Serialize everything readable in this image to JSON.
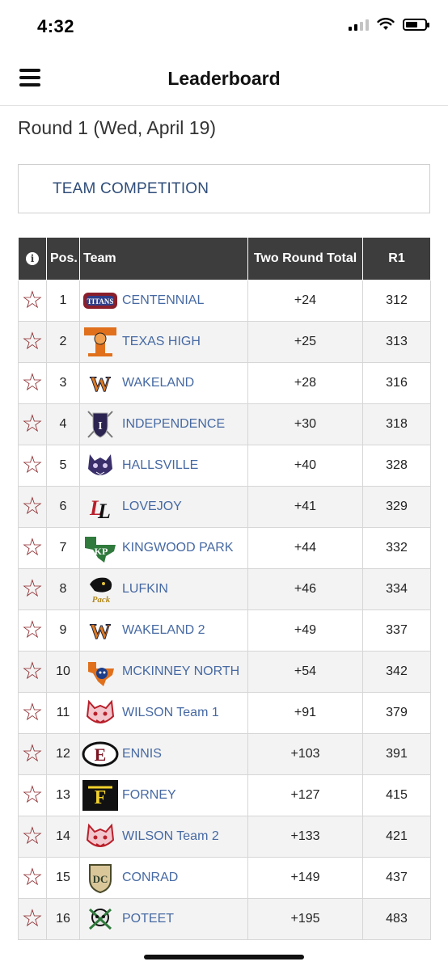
{
  "status_bar": {
    "time": "4:32",
    "icons": [
      "signal-icon",
      "wifi-icon",
      "battery-icon"
    ]
  },
  "header": {
    "title": "Leaderboard",
    "menu_icon": "hamburger-menu-icon"
  },
  "round_title": "Round 1 (Wed, April 19)",
  "competition_link": "TEAM COMPETITION",
  "table": {
    "columns": [
      "i",
      "Pos.",
      "Team",
      "Two Round Total",
      "R1"
    ],
    "rows": [
      {
        "pos": "1",
        "team": "CENTENNIAL",
        "total": "+24",
        "r1": "312",
        "logo": "titans-logo-icon"
      },
      {
        "pos": "2",
        "team": "TEXAS HIGH",
        "total": "+25",
        "r1": "313",
        "logo": "tiger-t-logo-icon"
      },
      {
        "pos": "3",
        "team": "WAKELAND",
        "total": "+28",
        "r1": "316",
        "logo": "w-logo-icon"
      },
      {
        "pos": "4",
        "team": "INDEPENDENCE",
        "total": "+30",
        "r1": "318",
        "logo": "shield-swords-logo-icon"
      },
      {
        "pos": "5",
        "team": "HALLSVILLE",
        "total": "+40",
        "r1": "328",
        "logo": "bobcat-logo-icon"
      },
      {
        "pos": "6",
        "team": "LOVEJOY",
        "total": "+41",
        "r1": "329",
        "logo": "ll-logo-icon"
      },
      {
        "pos": "7",
        "team": "KINGWOOD PARK",
        "total": "+44",
        "r1": "332",
        "logo": "texas-kp-logo-icon"
      },
      {
        "pos": "8",
        "team": "LUFKIN",
        "total": "+46",
        "r1": "334",
        "logo": "panther-pack-logo-icon"
      },
      {
        "pos": "9",
        "team": "WAKELAND 2",
        "total": "+49",
        "r1": "337",
        "logo": "w-logo-icon"
      },
      {
        "pos": "10",
        "team": "MCKINNEY NORTH",
        "total": "+54",
        "r1": "342",
        "logo": "texas-bulldog-logo-icon"
      },
      {
        "pos": "11",
        "team": "WILSON Team 1",
        "total": "+91",
        "r1": "379",
        "logo": "wildcat-logo-icon"
      },
      {
        "pos": "12",
        "team": "ENNIS",
        "total": "+103",
        "r1": "391",
        "logo": "e-oval-logo-icon"
      },
      {
        "pos": "13",
        "team": "FORNEY",
        "total": "+127",
        "r1": "415",
        "logo": "f-logo-icon"
      },
      {
        "pos": "14",
        "team": "WILSON Team 2",
        "total": "+133",
        "r1": "421",
        "logo": "wildcat-logo-icon"
      },
      {
        "pos": "15",
        "team": "CONRAD",
        "total": "+149",
        "r1": "437",
        "logo": "dc-crest-logo-icon"
      },
      {
        "pos": "16",
        "team": "POTEET",
        "total": "+195",
        "r1": "483",
        "logo": "pirate-logo-icon"
      }
    ]
  },
  "colors": {
    "header_bg": "#3d3d3d",
    "link": "#4669a3",
    "star": "#8c2a2e",
    "comp_link": "#2f4d79"
  }
}
